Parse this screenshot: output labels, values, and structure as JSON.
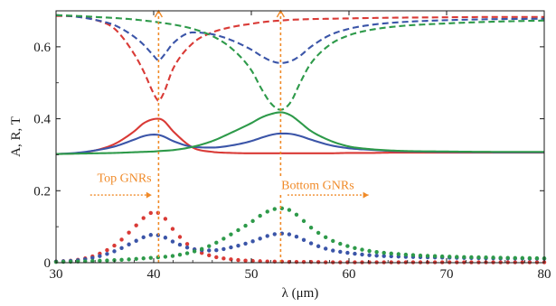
{
  "chart_data": {
    "type": "line",
    "xlabel": "λ (μm)",
    "ylabel": "A, R, T",
    "xlim": [
      30,
      80
    ],
    "ylim": [
      0,
      0.7
    ],
    "x_ticks": [
      30,
      40,
      50,
      60,
      70,
      80
    ],
    "y_ticks": [
      0,
      0.2,
      0.4,
      0.6
    ],
    "x_tick_labels": [
      "30",
      "40",
      "50",
      "60",
      "70",
      "80"
    ],
    "y_tick_labels": [
      "0",
      "0.2",
      "0.4",
      "0.6"
    ],
    "grid": false,
    "x": [
      30,
      32,
      34,
      36,
      38,
      39,
      40,
      40.5,
      41,
      42,
      44,
      46,
      48,
      50,
      51,
      52,
      53,
      54,
      55,
      56,
      58,
      60,
      62,
      65,
      70,
      75,
      80
    ],
    "series": [
      {
        "group": "R",
        "style": "dashed",
        "color": "#d93a36",
        "values": [
          0.686,
          0.684,
          0.675,
          0.65,
          0.58,
          0.53,
          0.47,
          0.45,
          0.47,
          0.54,
          0.61,
          0.64,
          0.655,
          0.664,
          0.668,
          0.671,
          0.673,
          0.675,
          0.676,
          0.677,
          0.678,
          0.679,
          0.68,
          0.681,
          0.682,
          0.683,
          0.683
        ]
      },
      {
        "group": "R",
        "style": "dashed",
        "color": "#3b55a8",
        "values": [
          0.688,
          0.684,
          0.675,
          0.66,
          0.628,
          0.605,
          0.575,
          0.562,
          0.575,
          0.61,
          0.64,
          0.635,
          0.618,
          0.592,
          0.575,
          0.561,
          0.555,
          0.56,
          0.575,
          0.598,
          0.632,
          0.65,
          0.66,
          0.668,
          0.674,
          0.677,
          0.678
        ]
      },
      {
        "group": "R",
        "style": "dashed",
        "color": "#2e9a4a",
        "values": [
          0.688,
          0.686,
          0.683,
          0.68,
          0.676,
          0.673,
          0.67,
          0.668,
          0.666,
          0.662,
          0.65,
          0.63,
          0.595,
          0.535,
          0.485,
          0.443,
          0.425,
          0.445,
          0.5,
          0.55,
          0.605,
          0.632,
          0.646,
          0.657,
          0.665,
          0.67,
          0.673
        ]
      },
      {
        "group": "A",
        "style": "solid",
        "color": "#d93a36",
        "values": [
          0.302,
          0.304,
          0.312,
          0.33,
          0.365,
          0.388,
          0.399,
          0.4,
          0.395,
          0.365,
          0.32,
          0.308,
          0.305,
          0.304,
          0.304,
          0.304,
          0.304,
          0.304,
          0.304,
          0.304,
          0.304,
          0.305,
          0.305,
          0.306,
          0.306,
          0.306,
          0.306
        ]
      },
      {
        "group": "A",
        "style": "solid",
        "color": "#3b55a8",
        "values": [
          0.302,
          0.305,
          0.312,
          0.323,
          0.342,
          0.352,
          0.356,
          0.355,
          0.351,
          0.338,
          0.322,
          0.32,
          0.326,
          0.338,
          0.347,
          0.355,
          0.359,
          0.358,
          0.352,
          0.343,
          0.327,
          0.318,
          0.314,
          0.31,
          0.308,
          0.307,
          0.307
        ]
      },
      {
        "group": "A",
        "style": "solid",
        "color": "#2e9a4a",
        "values": [
          0.302,
          0.303,
          0.304,
          0.305,
          0.307,
          0.308,
          0.309,
          0.31,
          0.311,
          0.313,
          0.322,
          0.338,
          0.362,
          0.388,
          0.403,
          0.413,
          0.418,
          0.41,
          0.39,
          0.368,
          0.34,
          0.323,
          0.316,
          0.311,
          0.309,
          0.308,
          0.308
        ]
      },
      {
        "group": "T",
        "style": "dotted",
        "color": "#d93a36",
        "values": [
          0.003,
          0.007,
          0.02,
          0.048,
          0.098,
          0.125,
          0.14,
          0.138,
          0.128,
          0.092,
          0.04,
          0.018,
          0.009,
          0.005,
          0.004,
          0.003,
          0.003,
          0.002,
          0.002,
          0.002,
          0.001,
          0.001,
          0.001,
          0.001,
          0.001,
          0.001,
          0.001
        ]
      },
      {
        "group": "T",
        "style": "dotted",
        "color": "#3b55a8",
        "values": [
          0.003,
          0.006,
          0.015,
          0.032,
          0.058,
          0.071,
          0.078,
          0.076,
          0.072,
          0.058,
          0.038,
          0.034,
          0.043,
          0.058,
          0.068,
          0.077,
          0.081,
          0.078,
          0.068,
          0.055,
          0.036,
          0.027,
          0.021,
          0.017,
          0.014,
          0.012,
          0.011
        ]
      },
      {
        "group": "T",
        "style": "dotted",
        "color": "#2e9a4a",
        "values": [
          0.002,
          0.003,
          0.005,
          0.007,
          0.01,
          0.012,
          0.014,
          0.015,
          0.016,
          0.019,
          0.03,
          0.05,
          0.08,
          0.113,
          0.132,
          0.146,
          0.151,
          0.145,
          0.125,
          0.1,
          0.065,
          0.045,
          0.033,
          0.024,
          0.017,
          0.014,
          0.012
        ]
      }
    ],
    "vlines": [
      40.5,
      53
    ],
    "annotations": [
      {
        "text": "Top GNRs",
        "x": 37,
        "y": 0.225,
        "arrow_from": 33.5,
        "arrow_to": 39.8,
        "arrow_y": 0.188
      },
      {
        "text": "Bottom GNRs",
        "x": 56.8,
        "y": 0.205,
        "arrow_from": 53.7,
        "arrow_to": 62,
        "arrow_y": 0.188
      }
    ],
    "annotation_color": "#f08a28"
  }
}
